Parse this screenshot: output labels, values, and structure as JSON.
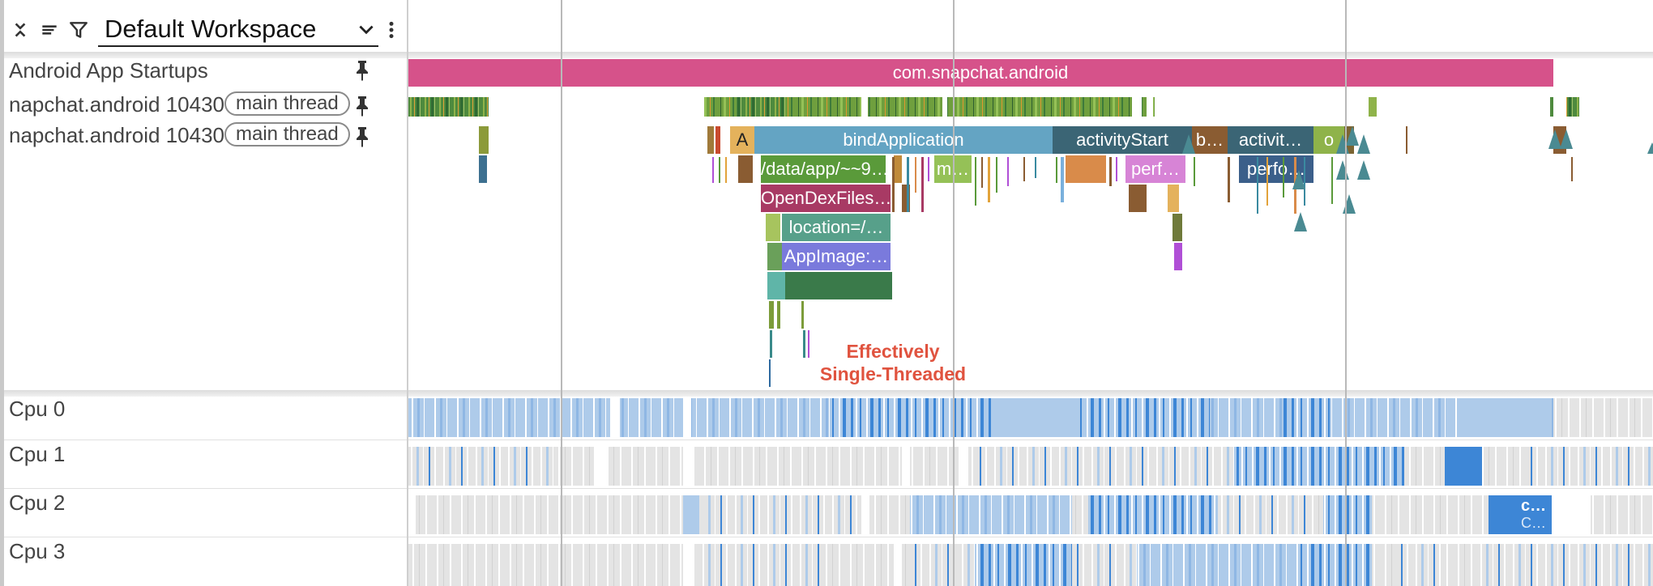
{
  "toolbar": {
    "collapse_icon": "collapse-all-icon",
    "lines_icon": "lines-icon",
    "filter_icon": "filter-icon",
    "workspace_label": "Default Workspace",
    "workspace_chevron": "chevron-down-icon",
    "more_icon": "more-vert-icon"
  },
  "tracks": {
    "startups": {
      "title": "Android App Startups",
      "slice_label": "com.snapchat.android"
    },
    "main_thread_1": {
      "title": "napchat.android 10430",
      "chip": "main thread"
    },
    "main_thread_2": {
      "title": "napchat.android 10430",
      "chip": "main thread",
      "slices": {
        "a": "A",
        "bind": "bindApplication",
        "activity_start": "activityStart",
        "b": "b…",
        "activit": "activit…",
        "o": "o",
        "data_app": "/data/app/~~9…",
        "m": "m…",
        "perf": "perf…",
        "perfo": "perfo…",
        "open_dex": "OpenDexFiles…",
        "location": "location=/…",
        "app_image": "AppImage:…"
      }
    },
    "cpus": [
      {
        "title": "Cpu 0"
      },
      {
        "title": "Cpu 1"
      },
      {
        "title": "Cpu 2",
        "slice_top": "c…",
        "slice_bottom": "C…"
      },
      {
        "title": "Cpu 3"
      }
    ]
  },
  "annotation": {
    "line1": "Effectively",
    "line2": "Single-Threaded"
  },
  "colors": {
    "startup_slice": "#d6528a",
    "bind_application": "#64a4c3",
    "activity_start": "#3b6575",
    "annotation": "#e0533f",
    "cpu_light_blue": "#aecbea",
    "cpu_blue": "#3d86d6",
    "cpu_grey": "#e4e4e4"
  }
}
